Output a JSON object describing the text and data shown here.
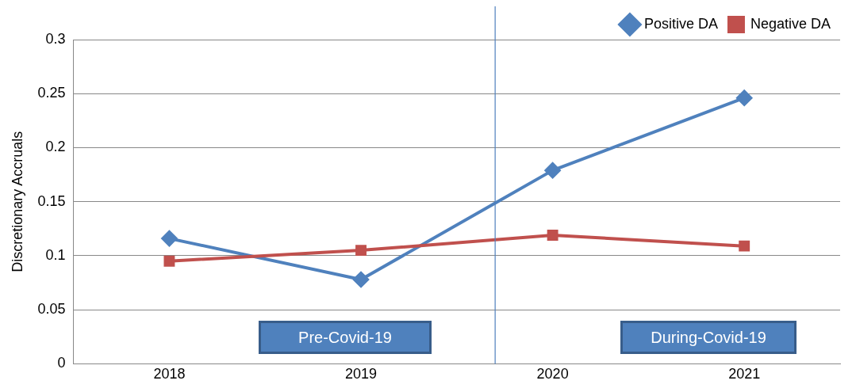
{
  "chart_data": {
    "type": "line",
    "ylabel": "Discretionary Accruals",
    "x": [
      2018,
      2019,
      2020,
      2021
    ],
    "xlim": [
      2017.5,
      2021.5
    ],
    "xticks": [
      2018,
      2019,
      2020,
      2021
    ],
    "ylim": [
      0,
      0.3
    ],
    "yticks": [
      0,
      0.05,
      0.1,
      0.15,
      0.2,
      0.25,
      0.3
    ],
    "grid": "y",
    "legend": "top right",
    "series": [
      {
        "name": "Positive DA",
        "color": "#4f81bd",
        "marker": "diamond",
        "values": [
          0.116,
          0.078,
          0.179,
          0.246
        ]
      },
      {
        "name": "Negative DA",
        "color": "#c0504d",
        "marker": "square",
        "values": [
          0.095,
          0.105,
          0.119,
          0.109
        ]
      }
    ],
    "ref_lines": [
      {
        "axis": "x",
        "value": 2019.7,
        "color": "#4f81bd"
      }
    ],
    "annotations": [
      "Pre-Covid-19",
      "During-Covid-19"
    ]
  }
}
